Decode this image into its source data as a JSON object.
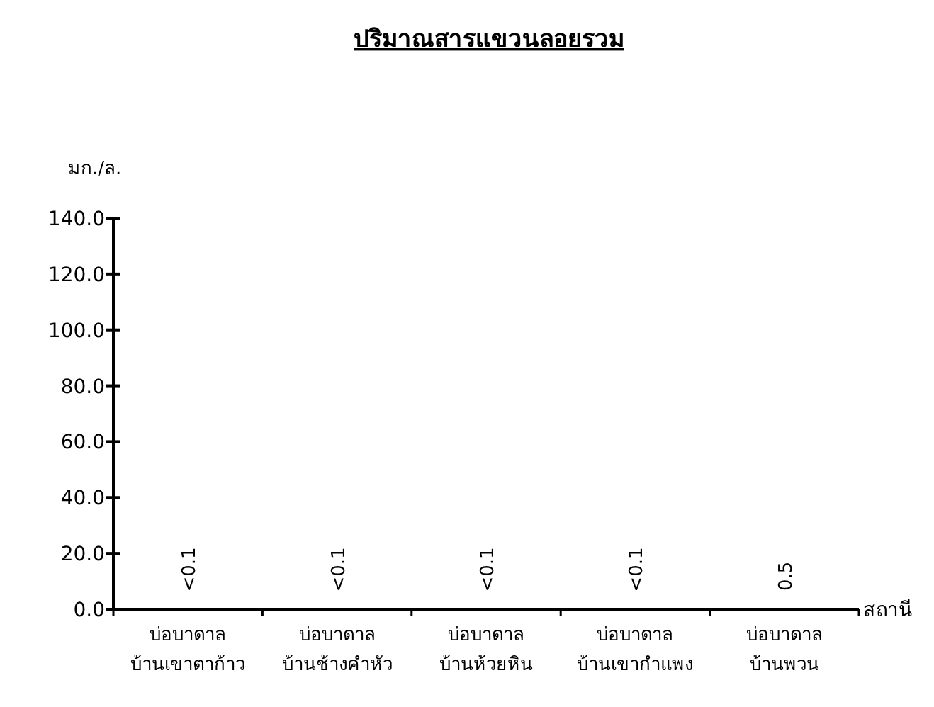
{
  "chart_data": {
    "type": "bar",
    "title": "ปริมาณสารแขวนลอยรวม",
    "ylabel": "มก./ล.",
    "xlabel": "สถานี",
    "categories": [
      "บ่อบาดาล บ้านเขาตาก้าว",
      "บ่อบาดาล บ้านช้างคำหัว",
      "บ่อบาดาล บ้านห้วยหิน",
      "บ่อบาดาล บ้านเขากำแพง",
      "บ่อบาดาล บ้านพวน"
    ],
    "values": [
      0.1,
      0.1,
      0.1,
      0.1,
      0.5
    ],
    "value_labels": [
      "<0.1",
      "<0.1",
      "<0.1",
      "<0.1",
      "0.5"
    ],
    "ylim": [
      0,
      140
    ],
    "yticks": [
      {
        "value": 0,
        "label": "0.0"
      },
      {
        "value": 20,
        "label": "20.0"
      },
      {
        "value": 40,
        "label": "40.0"
      },
      {
        "value": 60,
        "label": "60.0"
      },
      {
        "value": 80,
        "label": "80.0"
      },
      {
        "value": 100,
        "label": "100.0"
      },
      {
        "value": 120,
        "label": "120.0"
      },
      {
        "value": 140,
        "label": "140.0"
      }
    ],
    "grid": false
  }
}
